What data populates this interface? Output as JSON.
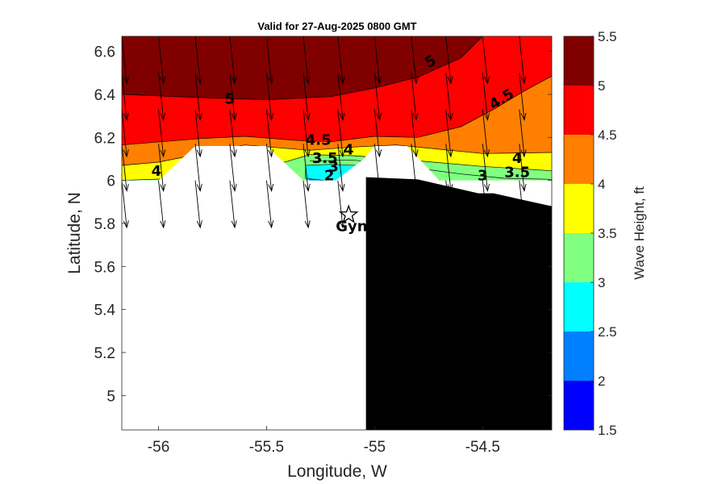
{
  "chart_data": {
    "type": "heatmap",
    "subtype": "filled-contour map with wave direction arrows",
    "title": "Valid for 27-Aug-2025 0800 GMT",
    "xlabel": "Longitude, W",
    "ylabel": "Latitude, N",
    "xlim": [
      -56.17,
      -54.18
    ],
    "ylim": [
      4.84,
      6.67
    ],
    "xticks": [
      -56,
      -55.5,
      -55,
      -54.5
    ],
    "xtick_labels": [
      "-56",
      "-55.5",
      "-55",
      "-54.5"
    ],
    "yticks": [
      5,
      5.2,
      5.4,
      5.6,
      5.8,
      6,
      6.2,
      6.4,
      6.6
    ],
    "ytick_labels": [
      "5",
      "5.2",
      "5.4",
      "5.6",
      "5.8",
      "6",
      "6.2",
      "6.4",
      "6.6"
    ],
    "colorbar": {
      "label": "Wave Height, ft",
      "levels": [
        1.5,
        2,
        2.5,
        3,
        3.5,
        4,
        4.5,
        5,
        5.5
      ],
      "level_labels": [
        "1.5",
        "2",
        "2.5",
        "3",
        "3.5",
        "4",
        "4.5",
        "5",
        "5.5"
      ],
      "colors": [
        "#0000ff",
        "#0080ff",
        "#00ffff",
        "#80ff80",
        "#ffff00",
        "#ff8000",
        "#ff0000",
        "#800000"
      ]
    },
    "contour_bands": [
      {
        "min": 5,
        "max": 5.5,
        "color": "#800000",
        "lower_boundary": [
          [
            -56.17,
            6.4
          ],
          [
            -55.8,
            6.385
          ],
          [
            -55.5,
            6.375
          ],
          [
            -55.2,
            6.39
          ],
          [
            -55.0,
            6.43
          ],
          [
            -54.8,
            6.48
          ],
          [
            -54.6,
            6.57
          ],
          [
            -54.5,
            6.67
          ]
        ]
      },
      {
        "min": 4.5,
        "max": 5,
        "color": "#ff0000",
        "lower_boundary": [
          [
            -56.17,
            6.165
          ],
          [
            -55.8,
            6.195
          ],
          [
            -55.6,
            6.205
          ],
          [
            -55.35,
            6.185
          ],
          [
            -55.2,
            6.18
          ],
          [
            -55.0,
            6.205
          ],
          [
            -54.8,
            6.2
          ],
          [
            -54.6,
            6.25
          ],
          [
            -54.45,
            6.33
          ],
          [
            -54.3,
            6.42
          ],
          [
            -54.18,
            6.485
          ]
        ]
      },
      {
        "min": 4,
        "max": 4.5,
        "color": "#ff8000",
        "lower_boundary": [
          [
            -56.17,
            6.07
          ],
          [
            -56.0,
            6.085
          ],
          [
            -55.6,
            6.165
          ],
          [
            -55.3,
            6.14
          ],
          [
            -55.1,
            6.155
          ],
          [
            -54.9,
            6.165
          ],
          [
            -54.5,
            6.125
          ],
          [
            -54.18,
            6.13
          ]
        ]
      },
      {
        "min": 3.5,
        "max": 4,
        "color": "#ffff00",
        "lower_boundary": [
          [
            -56.17,
            6.0
          ],
          [
            -55.9,
            6.01
          ],
          [
            -55.5,
            6.06
          ],
          [
            -55.3,
            6.12
          ],
          [
            -55.1,
            6.115
          ],
          [
            -54.9,
            6.1
          ],
          [
            -54.5,
            6.065
          ],
          [
            -54.18,
            6.045
          ]
        ]
      },
      {
        "min": 3,
        "max": 3.5,
        "color": "#80ff80",
        "lower_boundary": [
          [
            -55.3,
            6.09
          ],
          [
            -55.1,
            6.095
          ],
          [
            -54.9,
            6.07
          ],
          [
            -54.6,
            6.03
          ],
          [
            -54.4,
            6.01
          ],
          [
            -54.18,
            6.005
          ]
        ]
      },
      {
        "min": 2.5,
        "max": 3,
        "color": "#00ffff",
        "lower_boundary": [
          [
            -55.32,
            6.07
          ],
          [
            -55.2,
            6.075
          ],
          [
            -55.08,
            6.07
          ],
          [
            -54.9,
            6.04
          ],
          [
            -54.7,
            6.0
          ]
        ]
      },
      {
        "min": 2,
        "max": 2.5,
        "color": "#0080ff",
        "lower_boundary": [
          [
            -55.3,
            6.045
          ],
          [
            -55.2,
            6.05
          ],
          [
            -55.12,
            6.045
          ]
        ]
      },
      {
        "min": 1.5,
        "max": 2,
        "color": "#0000ff",
        "lower_boundary": [
          [
            -55.28,
            6.005
          ],
          [
            -55.22,
            6.0
          ],
          [
            -55.16,
            6.005
          ]
        ]
      }
    ],
    "contour_labels": [
      {
        "text": "5",
        "lon": -54.74,
        "lat": 6.55,
        "rotation": -30
      },
      {
        "text": "5",
        "lon": -55.67,
        "lat": 6.375,
        "rotation": 0
      },
      {
        "text": "4.5",
        "lon": -54.41,
        "lat": 6.375,
        "rotation": -32
      },
      {
        "text": "4.5",
        "lon": -55.26,
        "lat": 6.185,
        "rotation": 0
      },
      {
        "text": "4",
        "lon": -56.01,
        "lat": 6.04,
        "rotation": 0
      },
      {
        "text": "4",
        "lon": -55.12,
        "lat": 6.14,
        "rotation": 0
      },
      {
        "text": "4",
        "lon": -54.34,
        "lat": 6.1,
        "rotation": 0
      },
      {
        "text": "3.5",
        "lon": -55.23,
        "lat": 6.1,
        "rotation": 0
      },
      {
        "text": "3.5",
        "lon": -54.34,
        "lat": 6.035,
        "rotation": 0
      },
      {
        "text": "3",
        "lon": -55.19,
        "lat": 6.06,
        "rotation": 0
      },
      {
        "text": "3",
        "lon": -54.5,
        "lat": 6.02,
        "rotation": 0
      },
      {
        "text": "2",
        "lon": -55.21,
        "lat": 6.02,
        "rotation": 0
      }
    ],
    "land_mask": [
      [
        -56.17,
        6.0
      ],
      [
        -56.0,
        6.0
      ],
      [
        -55.83,
        6.16
      ],
      [
        -55.5,
        6.16
      ],
      [
        -55.33,
        6.0
      ],
      [
        -55.18,
        6.0
      ],
      [
        -55.05,
        6.1
      ],
      [
        -55.0,
        6.16
      ],
      [
        -54.85,
        6.16
      ],
      [
        -54.7,
        6.0
      ],
      [
        -54.18,
        6.0
      ],
      [
        -54.18,
        4.84
      ],
      [
        -56.17,
        4.84
      ]
    ],
    "black_mask": [
      [
        -55.04,
        6.015
      ],
      [
        -54.8,
        6.005
      ],
      [
        -54.52,
        5.94
      ],
      [
        -54.45,
        5.94
      ],
      [
        -54.18,
        5.88
      ],
      [
        -54.18,
        4.84
      ],
      [
        -55.04,
        4.84
      ]
    ],
    "station": {
      "name": "Gyn",
      "lon": -55.12,
      "lat": 5.84
    },
    "arrow_grid": {
      "lons": [
        -56.17,
        -56.0,
        -55.83,
        -55.67,
        -55.5,
        -55.33,
        -55.17,
        -55.0,
        -54.83,
        -54.67,
        -54.5,
        -54.33,
        -54.18
      ],
      "lats": [
        6.67,
        6.5,
        6.33,
        6.17,
        6.0
      ],
      "direction_deg": 174,
      "length_deg_lat": 0.22
    }
  }
}
